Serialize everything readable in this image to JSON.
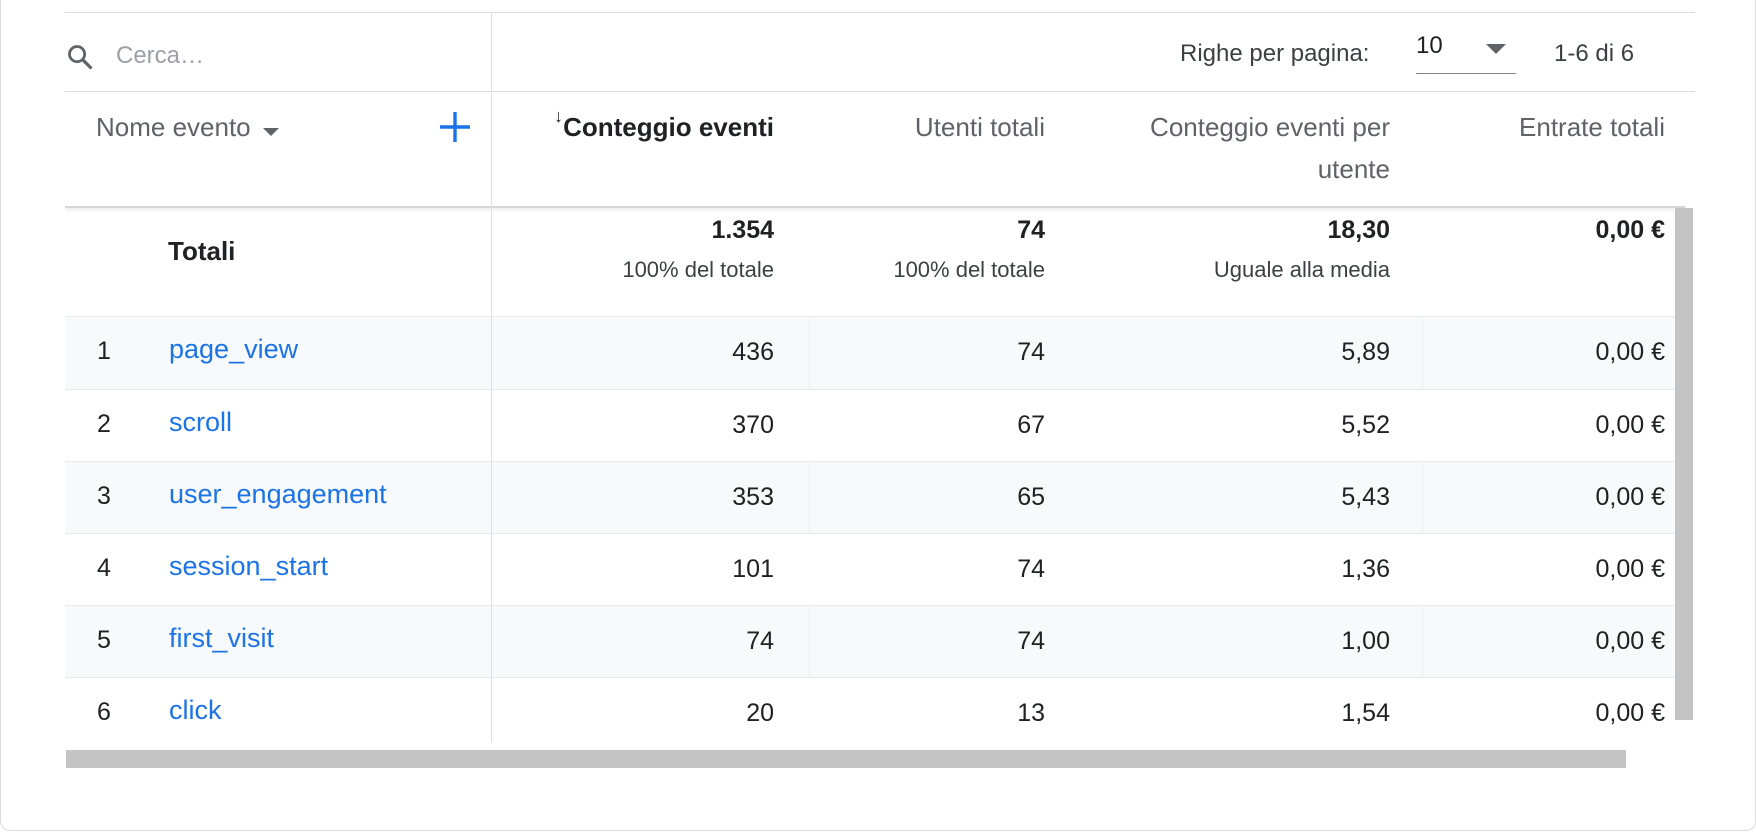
{
  "search": {
    "placeholder": "Cerca…"
  },
  "pagination": {
    "rows_label": "Righe per pagina:",
    "rows_value": "10",
    "range": "1-6 di 6"
  },
  "columns": {
    "dimension": "Nome evento",
    "event_count": "Conteggio eventi",
    "total_users": "Utenti totali",
    "events_per_user_line1": "Conteggio eventi per",
    "events_per_user_line2": "utente",
    "total_revenue": "Entrate totali"
  },
  "totals": {
    "label": "Totali",
    "event_count": "1.354",
    "event_count_sub": "100% del totale",
    "total_users": "74",
    "total_users_sub": "100% del totale",
    "events_per_user": "18,30",
    "events_per_user_sub": "Uguale alla media",
    "total_revenue": "0,00 €"
  },
  "rows": [
    {
      "index": "1",
      "name": "page_view",
      "event_count": "436",
      "total_users": "74",
      "events_per_user": "5,89",
      "total_revenue": "0,00 €"
    },
    {
      "index": "2",
      "name": "scroll",
      "event_count": "370",
      "total_users": "67",
      "events_per_user": "5,52",
      "total_revenue": "0,00 €"
    },
    {
      "index": "3",
      "name": "user_engagement",
      "event_count": "353",
      "total_users": "65",
      "events_per_user": "5,43",
      "total_revenue": "0,00 €"
    },
    {
      "index": "4",
      "name": "session_start",
      "event_count": "101",
      "total_users": "74",
      "events_per_user": "1,36",
      "total_revenue": "0,00 €"
    },
    {
      "index": "5",
      "name": "first_visit",
      "event_count": "74",
      "total_users": "74",
      "events_per_user": "1,00",
      "total_revenue": "0,00 €"
    },
    {
      "index": "6",
      "name": "click",
      "event_count": "20",
      "total_users": "13",
      "events_per_user": "1,54",
      "total_revenue": "0,00 €"
    }
  ],
  "icons": {
    "search": "search-icon",
    "add": "plus-icon",
    "sort": "arrow-down-icon",
    "dropdown": "caret-down-icon"
  },
  "colors": {
    "link": "#1a73e8",
    "add_button": "#1a73e8",
    "row_shade": "#f8f9fa",
    "scrollbar": "#c4c4c4"
  }
}
